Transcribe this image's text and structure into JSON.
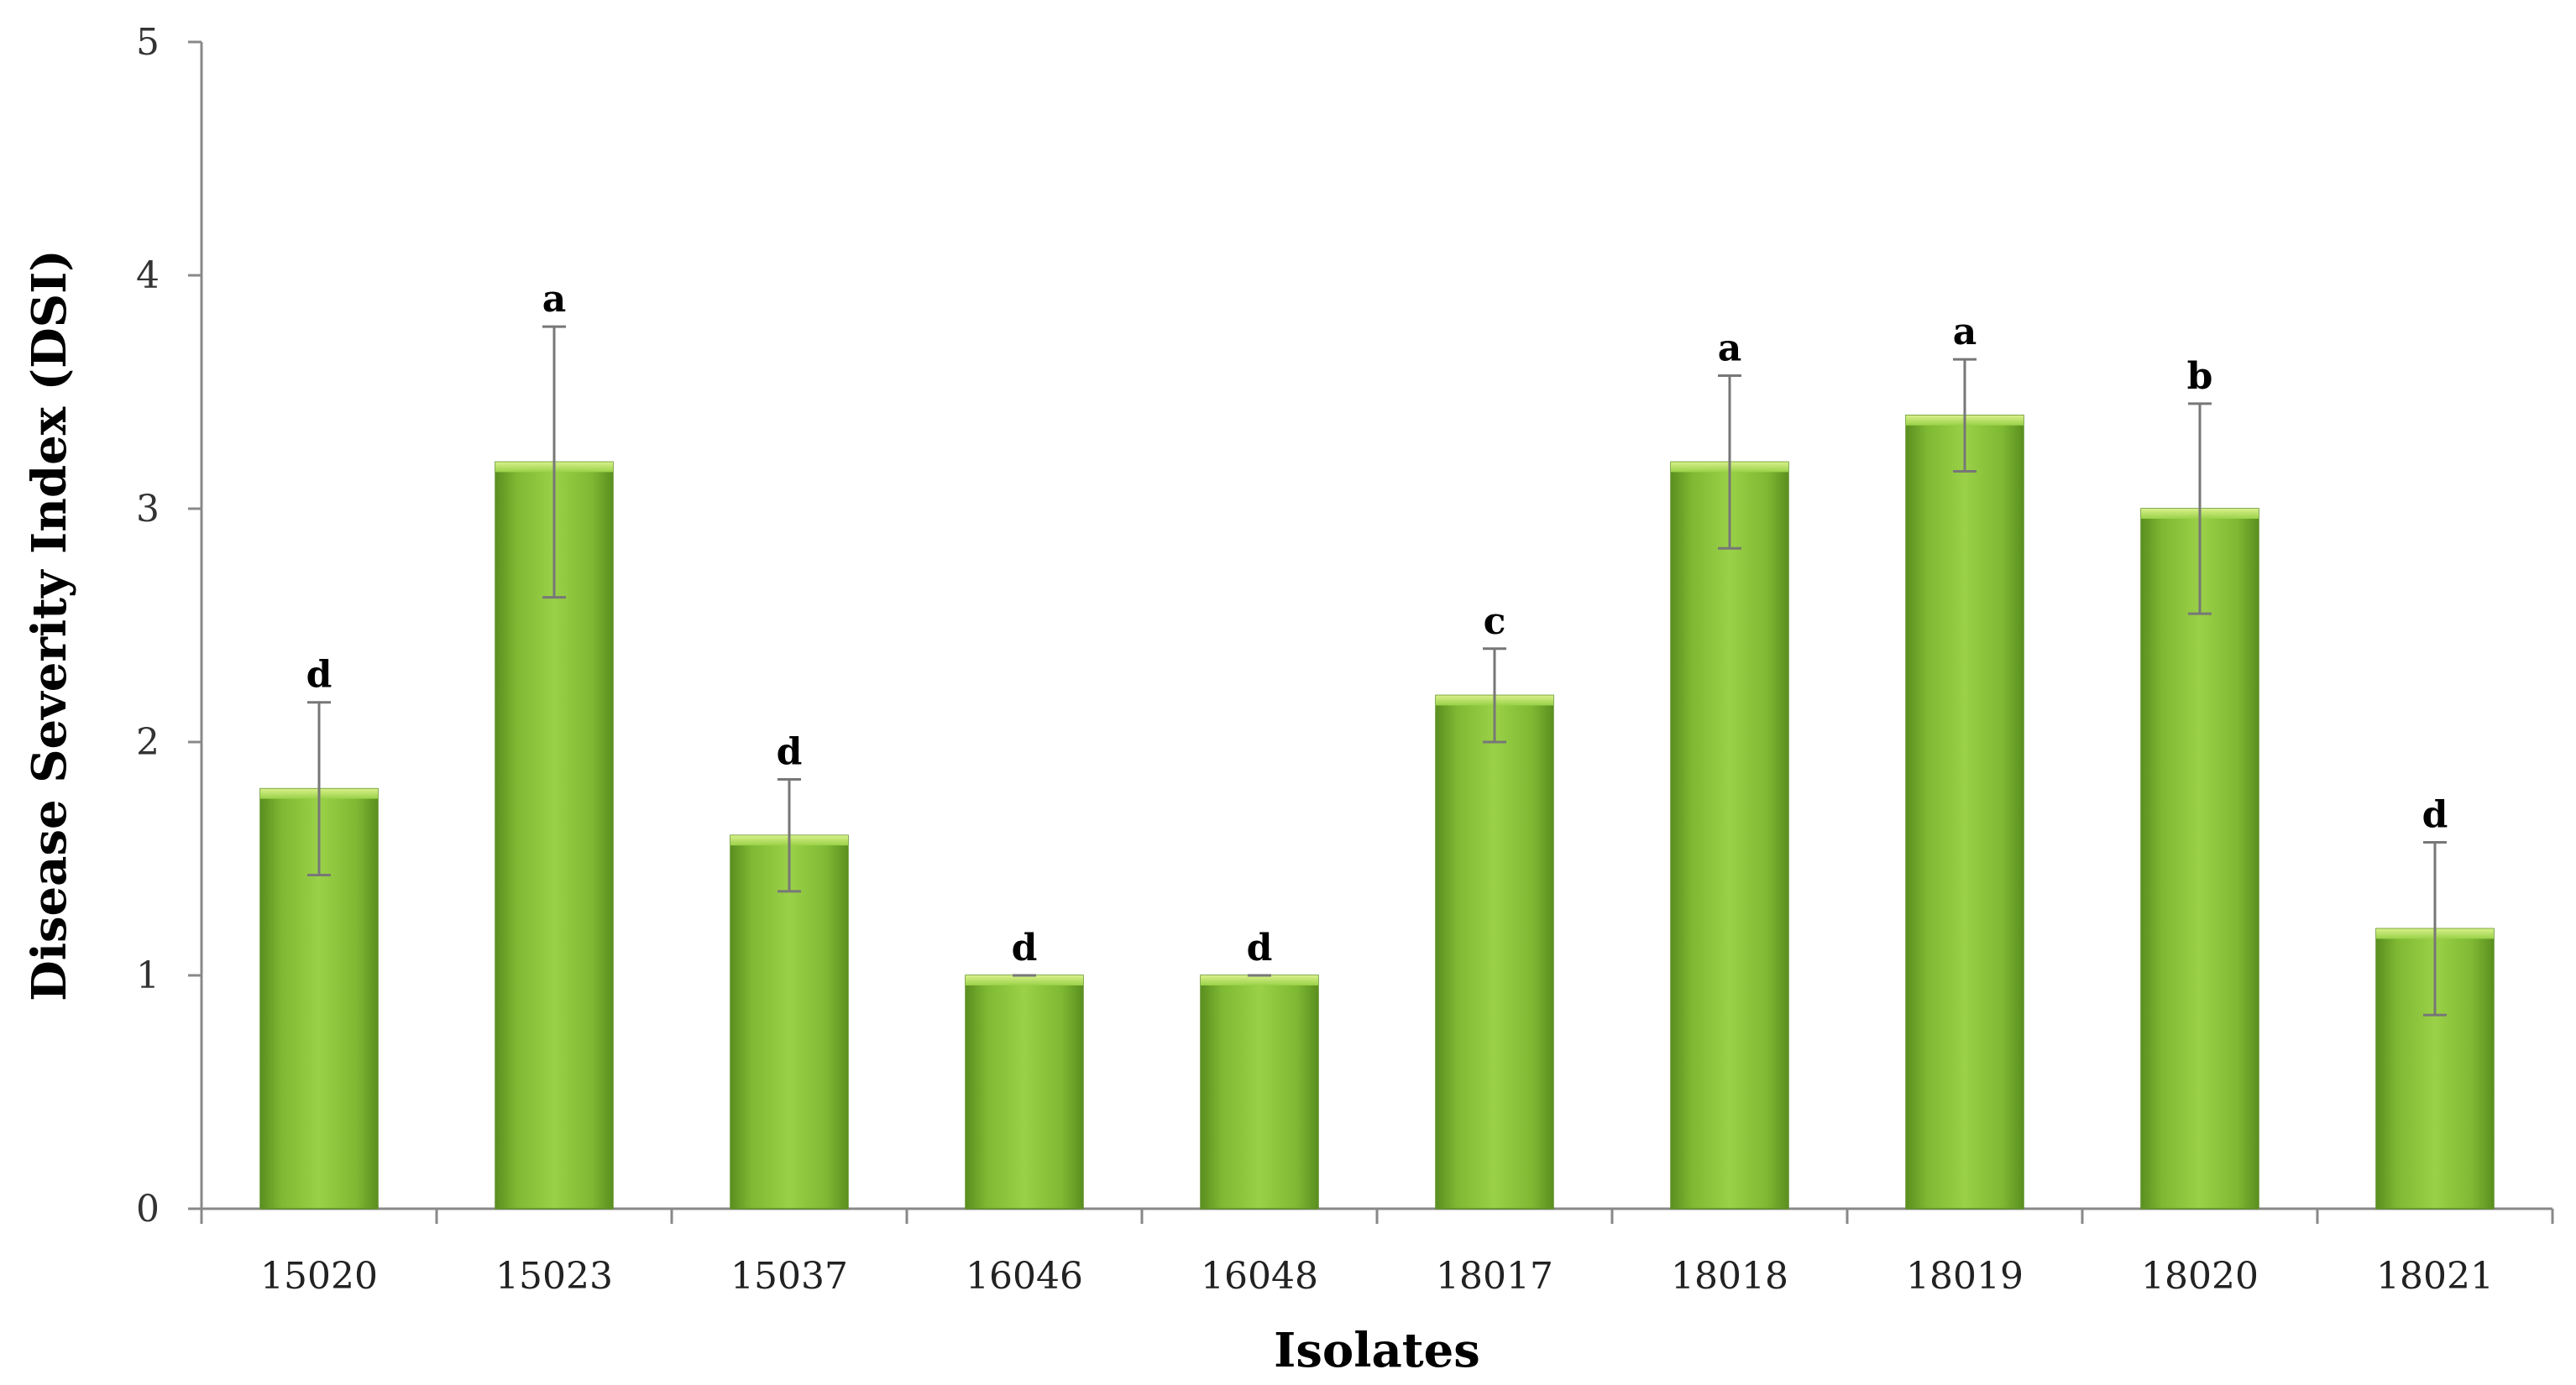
{
  "chart_data": {
    "type": "bar",
    "title": "",
    "xlabel": "Isolates",
    "ylabel": "Disease Severity Index (DSI)",
    "ylim": [
      0,
      5
    ],
    "yticks": [
      "0",
      "1",
      "2",
      "3",
      "4",
      "5"
    ],
    "grid": false,
    "legend": "none",
    "bar_color": "#8cc63f",
    "categories": [
      "15020",
      "15023",
      "15037",
      "16046",
      "16048",
      "18017",
      "18018",
      "18019",
      "18020",
      "18021"
    ],
    "values": [
      1.8,
      3.2,
      1.6,
      1.0,
      1.0,
      2.2,
      3.2,
      3.4,
      3.0,
      1.2
    ],
    "errors": [
      0.37,
      0.58,
      0.24,
      0.0,
      0.0,
      0.2,
      0.37,
      0.24,
      0.45,
      0.37
    ],
    "significance": [
      "d",
      "a",
      "d",
      "d",
      "d",
      "c",
      "a",
      "a",
      "b",
      "d"
    ]
  }
}
